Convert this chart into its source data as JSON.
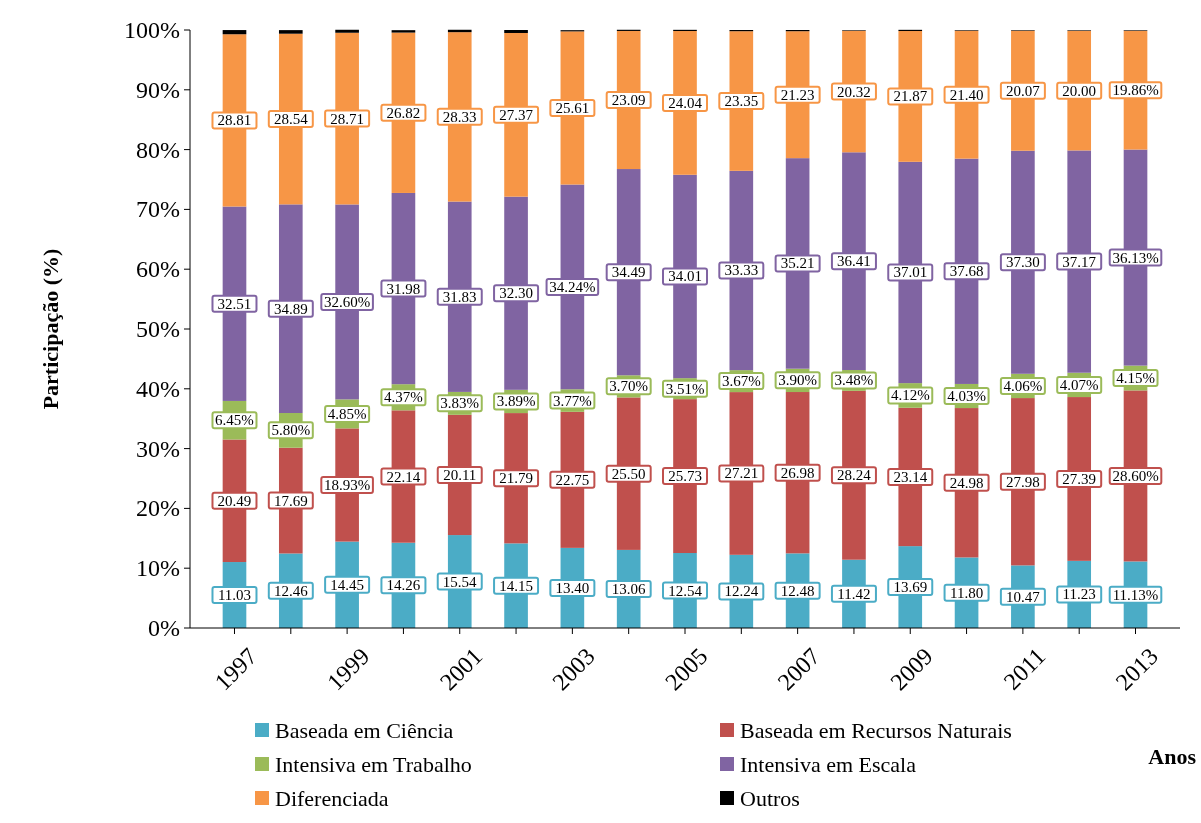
{
  "chart_data": {
    "type": "bar",
    "stacked": true,
    "xlabel": "Anos",
    "ylabel": "Participação (%)",
    "categories": [
      "1997",
      null,
      "1999",
      null,
      "2001",
      null,
      "2003",
      null,
      "2005",
      null,
      "2007",
      null,
      "2009",
      null,
      "2011",
      null,
      "2013"
    ],
    "ylim": [
      0,
      100
    ],
    "yticks": [
      {
        "value": 0,
        "label": "0%"
      },
      {
        "value": 10,
        "label": "10%"
      },
      {
        "value": 20,
        "label": "20%"
      },
      {
        "value": 30,
        "label": "30%"
      },
      {
        "value": 40,
        "label": "40%"
      },
      {
        "value": 50,
        "label": "50%"
      },
      {
        "value": 60,
        "label": "60%"
      },
      {
        "value": 70,
        "label": "70%"
      },
      {
        "value": 80,
        "label": "80%"
      },
      {
        "value": 90,
        "label": "90%"
      },
      {
        "value": 100,
        "label": "100%"
      }
    ],
    "legend": "bottom",
    "grid": false,
    "series": [
      {
        "name": "Baseada em Ciência",
        "color": "#4bacc6",
        "values": [
          11.03,
          12.46,
          14.45,
          14.26,
          15.54,
          14.15,
          13.4,
          13.06,
          12.54,
          12.24,
          12.48,
          11.42,
          13.69,
          11.8,
          10.47,
          11.23,
          11.13
        ],
        "value_labels": [
          "11.03",
          "12.46",
          "14.45",
          "14.26",
          "15.54",
          "14.15",
          "13.40",
          "13.06",
          "12.54",
          "12.24",
          "12.48",
          "11.42",
          "13.69",
          "11.80",
          "10.47",
          "11.23",
          "11.13%"
        ]
      },
      {
        "name": "Baseada em Recursos Naturais",
        "color": "#c0504d",
        "values": [
          20.49,
          17.69,
          18.93,
          22.14,
          20.11,
          21.79,
          22.75,
          25.5,
          25.73,
          27.21,
          26.98,
          28.24,
          23.14,
          24.98,
          27.98,
          27.39,
          28.6
        ],
        "value_labels": [
          "20.49",
          "17.69",
          "18.93%",
          "22.14",
          "20.11",
          "21.79",
          "22.75",
          "25.50",
          "25.73",
          "27.21",
          "26.98",
          "28.24",
          "23.14",
          "24.98",
          "27.98",
          "27.39",
          "28.60%"
        ]
      },
      {
        "name": "Intensiva em Trabalho",
        "color": "#9bbb59",
        "values": [
          6.45,
          5.8,
          4.85,
          4.37,
          3.83,
          3.89,
          3.77,
          3.7,
          3.51,
          3.67,
          3.9,
          3.48,
          4.12,
          4.03,
          4.06,
          4.07,
          4.15
        ],
        "value_labels": [
          "6.45%",
          "5.80%",
          "4.85%",
          "4.37%",
          "3.83%",
          "3.89%",
          "3.77%",
          "3.70%",
          "3.51%",
          "3.67%",
          "3.90%",
          "3.48%",
          "4.12%",
          "4.03%",
          "4.06%",
          "4.07%",
          "4.15%"
        ]
      },
      {
        "name": "Intensiva em Escala",
        "color": "#8064a2",
        "values": [
          32.51,
          34.89,
          32.6,
          31.98,
          31.83,
          32.3,
          34.24,
          34.49,
          34.01,
          33.33,
          35.21,
          36.41,
          37.01,
          37.68,
          37.3,
          37.17,
          36.13
        ],
        "value_labels": [
          "32.51",
          "34.89",
          "32.60%",
          "31.98",
          "31.83",
          "32.30",
          "34.24%",
          "34.49",
          "34.01",
          "33.33",
          "35.21",
          "36.41",
          "37.01",
          "37.68",
          "37.30",
          "37.17",
          "36.13%"
        ]
      },
      {
        "name": "Diferenciada",
        "color": "#f79646",
        "values": [
          28.81,
          28.54,
          28.71,
          26.82,
          28.33,
          27.37,
          25.61,
          23.09,
          24.04,
          23.35,
          21.23,
          20.32,
          21.87,
          21.4,
          20.07,
          20.0,
          19.86
        ],
        "value_labels": [
          "28.81",
          "28.54",
          "28.71",
          "26.82",
          "28.33",
          "27.37",
          "25.61",
          "23.09",
          "24.04",
          "23.35",
          "21.23",
          "20.32",
          "21.87",
          "21.40",
          "20.07",
          "20.00",
          "19.86%"
        ]
      },
      {
        "name": "Outros",
        "color": "#000000",
        "values": [
          0.7,
          0.6,
          0.5,
          0.4,
          0.4,
          0.5,
          0.2,
          0.2,
          0.2,
          0.2,
          0.2,
          0.1,
          0.2,
          0.1,
          0.1,
          0.1,
          0.1
        ]
      }
    ]
  }
}
